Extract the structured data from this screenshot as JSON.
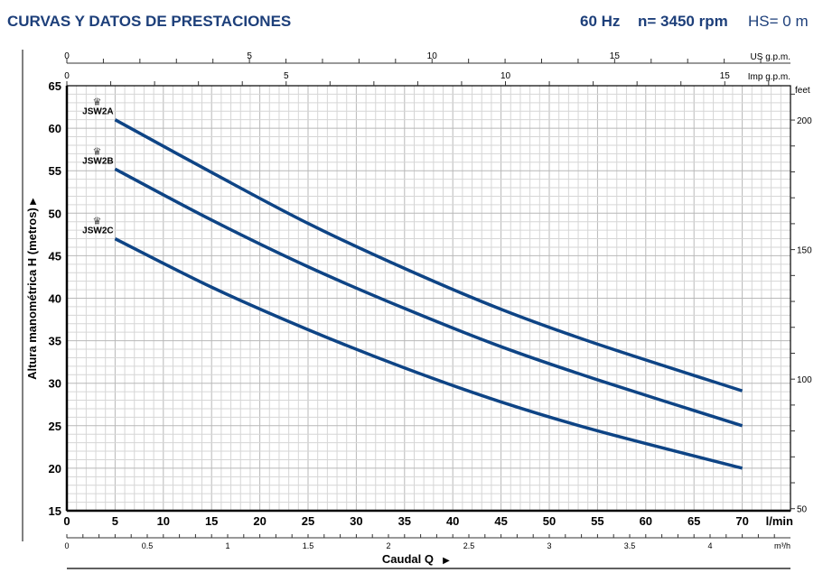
{
  "header": {
    "title": "CURVAS Y DATOS DE PRESTACIONES",
    "frequency": "60 Hz",
    "speed": "n= 3450 rpm",
    "suction": "HS= 0 m"
  },
  "colors": {
    "curve": "#0e4485",
    "title": "#1d3f7a",
    "grid": "#c8c8c8"
  },
  "chart_data": {
    "type": "line",
    "xlabel": "Caudal Q",
    "ylabel": "Altura manométrica H (metros)",
    "x_unit": "l/min",
    "xlim": [
      0,
      75
    ],
    "ylim": [
      15,
      65
    ],
    "x_ticks": [
      0,
      5,
      10,
      15,
      20,
      25,
      30,
      35,
      40,
      45,
      50,
      55,
      60,
      65,
      70
    ],
    "y_ticks": [
      15,
      20,
      25,
      30,
      35,
      40,
      45,
      50,
      55,
      60,
      65
    ],
    "grid": true,
    "secondary_axes": {
      "top_us": {
        "unit": "US g.p.m.",
        "ticks": [
          0,
          5,
          10,
          15
        ]
      },
      "top_imp": {
        "unit": "Imp g.p.m.",
        "ticks": [
          0,
          5,
          10,
          15
        ]
      },
      "bottom_m3h": {
        "unit": "m³/h",
        "ticks": [
          "0",
          "0.5",
          "1",
          "1.5",
          "2",
          "2.5",
          "3",
          "3.5",
          "4"
        ]
      },
      "right_feet": {
        "unit": "feet",
        "ticks": [
          50,
          100,
          150,
          200
        ]
      }
    },
    "series": [
      {
        "name": "JSW2A",
        "x": [
          5,
          15,
          25,
          35,
          45,
          55,
          70
        ],
        "y": [
          61,
          54.8,
          48.8,
          43.5,
          38.7,
          34.6,
          29.1
        ]
      },
      {
        "name": "JSW2B",
        "x": [
          5,
          15,
          25,
          35,
          45,
          55,
          70
        ],
        "y": [
          55.2,
          49.2,
          43.7,
          38.8,
          34.3,
          30.4,
          25
        ]
      },
      {
        "name": "JSW2C",
        "x": [
          5,
          15,
          25,
          35,
          45,
          55,
          70
        ],
        "y": [
          47,
          41.3,
          36.3,
          31.8,
          27.8,
          24.4,
          20
        ]
      }
    ]
  }
}
